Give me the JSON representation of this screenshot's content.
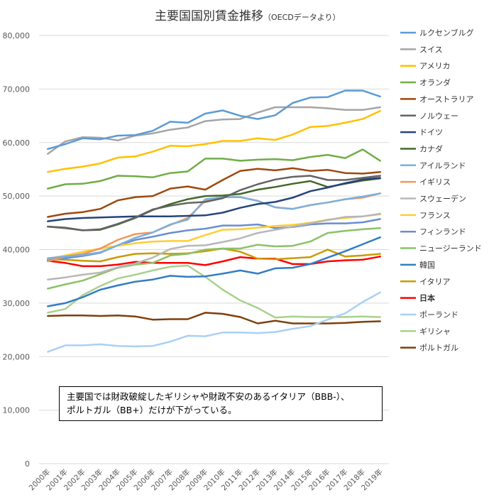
{
  "chart_data": {
    "type": "line",
    "title": "主要国国別賃金推移",
    "subtitle": "（OECDデータより）",
    "ylim": [
      0,
      80000
    ],
    "yticks": [
      "0",
      "10,000",
      "20,000",
      "30,000",
      "40,000",
      "50,000",
      "60,000",
      "70,000",
      "80,000"
    ],
    "ytick_values": [
      0,
      10000,
      20000,
      30000,
      40000,
      50000,
      60000,
      70000,
      80000
    ],
    "grid": true,
    "legend_position": "right",
    "categories": [
      "2000年",
      "2001年",
      "2002年",
      "2003年",
      "2004年",
      "2005年",
      "2006年",
      "2007年",
      "2008年",
      "2009年",
      "2010年",
      "2011年",
      "2012年",
      "2013年",
      "2014年",
      "2015年",
      "2016年",
      "2017年",
      "2018年",
      "2019年"
    ],
    "series": [
      {
        "name": "ルクセンブルグ",
        "color": "#5b9bd5",
        "values": [
          58800,
          59700,
          60800,
          60600,
          61300,
          61400,
          62200,
          63900,
          63700,
          65400,
          66000,
          65000,
          64400,
          65100,
          67400,
          68400,
          68500,
          69700,
          69700,
          68600
        ]
      },
      {
        "name": "スイス",
        "color": "#a5a5a5",
        "values": [
          57900,
          60200,
          61000,
          60900,
          60400,
          61300,
          61700,
          62400,
          62800,
          64000,
          64300,
          64400,
          65600,
          66600,
          66600,
          66600,
          66400,
          66100,
          66100,
          66600
        ]
      },
      {
        "name": "アメリカ",
        "color": "#ffc000",
        "values": [
          54500,
          55100,
          55500,
          56100,
          57200,
          57400,
          58300,
          59400,
          59300,
          59700,
          60300,
          60300,
          60800,
          60500,
          61500,
          62900,
          63100,
          63700,
          64400,
          65900
        ]
      },
      {
        "name": "オランダ",
        "color": "#70ad47",
        "values": [
          51400,
          52200,
          52300,
          52800,
          53800,
          53700,
          53500,
          54300,
          54600,
          57000,
          57000,
          56600,
          56800,
          56900,
          56700,
          57300,
          57700,
          57100,
          58700,
          56600
        ]
      },
      {
        "name": "オーストラリア",
        "color": "#9e480e",
        "values": [
          46100,
          46700,
          47000,
          47600,
          49200,
          49800,
          50000,
          51400,
          51800,
          51200,
          53000,
          54700,
          55100,
          54800,
          55200,
          54700,
          54900,
          54300,
          54200,
          54500
        ]
      },
      {
        "name": "ノルウェー",
        "color": "#636363",
        "values": [
          44300,
          44100,
          43600,
          43800,
          44800,
          46000,
          47500,
          48200,
          48700,
          48900,
          49600,
          51100,
          52200,
          53100,
          53600,
          53800,
          53000,
          53000,
          53400,
          53800
        ]
      },
      {
        "name": "ドイツ",
        "color": "#264478",
        "values": [
          45300,
          45700,
          45900,
          46000,
          46100,
          46200,
          46200,
          46200,
          46300,
          46400,
          46900,
          47800,
          48500,
          48900,
          49700,
          50900,
          51600,
          52400,
          53100,
          53400
        ]
      },
      {
        "name": "カナダ",
        "color": "#43682b",
        "values": [
          44300,
          44000,
          43600,
          43700,
          44700,
          45900,
          47400,
          48500,
          49400,
          50000,
          50100,
          50400,
          51200,
          51700,
          52300,
          52800,
          51700,
          52300,
          52900,
          53300
        ]
      },
      {
        "name": "アイルランド",
        "color": "#7cafdd",
        "values": [
          38400,
          38700,
          39000,
          39500,
          40800,
          42200,
          43200,
          44700,
          45600,
          49400,
          49800,
          49800,
          49100,
          47900,
          47600,
          48300,
          48800,
          49400,
          49900,
          50500
        ]
      },
      {
        "name": "イギリス",
        "color": "#f1975a",
        "values": [
          37800,
          38700,
          39200,
          40200,
          41800,
          42900,
          43200,
          44600,
          45900,
          49100,
          49800,
          49800,
          49100,
          47900,
          47600,
          48300,
          48800,
          49400,
          49700,
          50500
        ]
      },
      {
        "name": "スウェーデン",
        "color": "#b7b7b7",
        "values": [
          34400,
          34800,
          35300,
          35700,
          36700,
          37400,
          38500,
          40100,
          40700,
          40800,
          41400,
          42100,
          43100,
          43700,
          44300,
          44900,
          45500,
          46100,
          46200,
          46700
        ]
      },
      {
        "name": "フランス",
        "color": "#ffcd33",
        "values": [
          38300,
          38900,
          39600,
          40200,
          40700,
          41200,
          41500,
          41600,
          41600,
          42700,
          43700,
          43800,
          44100,
          44400,
          44600,
          45000,
          45600,
          45900,
          46200,
          46600
        ]
      },
      {
        "name": "フィンランド",
        "color": "#698ed0",
        "values": [
          38100,
          38400,
          38800,
          39400,
          40800,
          41800,
          42400,
          43100,
          43600,
          43900,
          44500,
          44500,
          44700,
          44000,
          44200,
          44700,
          44900,
          44900,
          45100,
          45700
        ]
      },
      {
        "name": "ニュージーランド",
        "color": "#8cc168",
        "values": [
          32700,
          33500,
          34200,
          35400,
          36600,
          37200,
          37500,
          38900,
          39200,
          40000,
          40200,
          40200,
          40900,
          40600,
          40700,
          41500,
          43100,
          43500,
          43800,
          44000
        ]
      },
      {
        "name": "韓国",
        "color": "#327dc2",
        "values": [
          29400,
          30000,
          31100,
          32500,
          33300,
          34000,
          34400,
          35100,
          34900,
          35000,
          35500,
          36100,
          35500,
          36500,
          36600,
          37300,
          38500,
          39700,
          41000,
          42300
        ]
      },
      {
        "name": "イタリア",
        "color": "#cc9a00",
        "values": [
          38200,
          38100,
          37900,
          37800,
          38600,
          39200,
          39300,
          39200,
          39300,
          39700,
          40200,
          39600,
          38300,
          38200,
          38400,
          38600,
          40000,
          38700,
          38900,
          39200
        ]
      },
      {
        "name": "日本",
        "color": "#ff0000",
        "values": [
          37900,
          37500,
          36900,
          36900,
          37200,
          37700,
          37500,
          37500,
          37500,
          37100,
          37800,
          38600,
          38300,
          38300,
          37300,
          37300,
          37800,
          38000,
          38100,
          38700
        ]
      },
      {
        "name": "ポーランド",
        "color": "#a9d0f5",
        "values": [
          20900,
          22100,
          22100,
          22300,
          22000,
          21900,
          22000,
          22800,
          23900,
          23800,
          24500,
          24500,
          24400,
          24600,
          25200,
          25700,
          26900,
          28100,
          30200,
          32000
        ]
      },
      {
        "name": "ギリシャ",
        "color": "#a9d18e",
        "values": [
          28200,
          28900,
          31500,
          33200,
          34600,
          35300,
          36100,
          36800,
          37000,
          34900,
          32500,
          30500,
          29100,
          27300,
          27500,
          27400,
          27400,
          27400,
          27500,
          27400
        ]
      },
      {
        "name": "ポルトガル",
        "color": "#7f3f0c",
        "values": [
          27600,
          27700,
          27700,
          27600,
          27700,
          27500,
          26900,
          27000,
          27000,
          28200,
          28000,
          27400,
          26200,
          26700,
          26200,
          26200,
          26200,
          26300,
          26500,
          26600
        ]
      }
    ],
    "bold_legend": [
      "日本"
    ],
    "annotation": [
      "主要国では財政破綻したギリシャや財政不安のあるイタリア（BBB-）、",
      "ポルトガル（BB+）だけが下がっている。"
    ]
  }
}
